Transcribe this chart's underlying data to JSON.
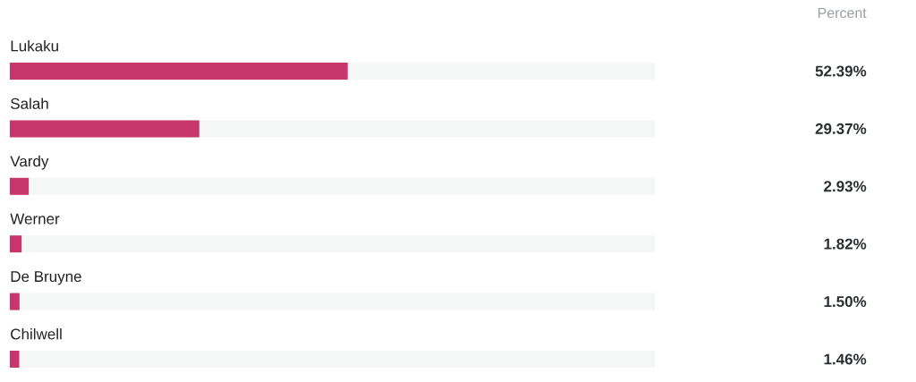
{
  "chart_data": {
    "type": "bar",
    "orientation": "horizontal",
    "annotations": [
      "Percent"
    ],
    "categories": [
      "Lukaku",
      "Salah",
      "Vardy",
      "Werner",
      "De Bruyne",
      "Chilwell"
    ],
    "values": [
      52.39,
      29.37,
      2.93,
      1.82,
      1.5,
      1.46
    ],
    "value_labels": [
      "52.39%",
      "29.37%",
      "2.93%",
      "1.82%",
      "1.50%",
      "1.46%"
    ],
    "color": "#c8366c",
    "xlim": [
      0,
      100
    ],
    "tick_labels": "y"
  }
}
